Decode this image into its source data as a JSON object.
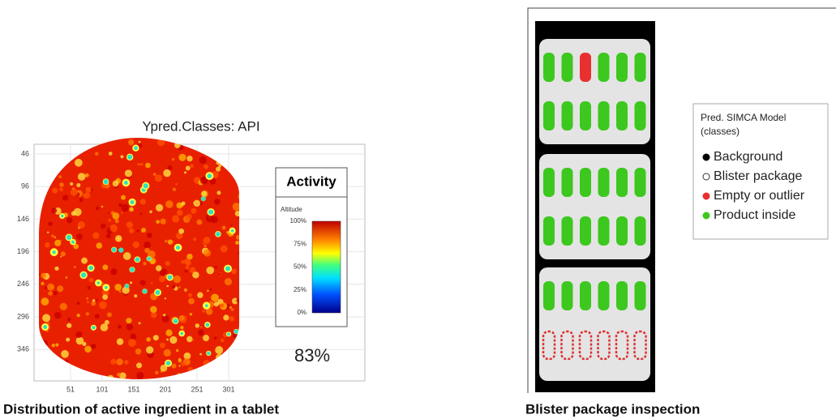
{
  "left_panel": {
    "title": "Ypred.Classes: API",
    "y_tick_labels": [
      46,
      96,
      146,
      196,
      246,
      296,
      346
    ],
    "x_tick_labels": [
      51,
      101,
      151,
      201,
      251,
      301
    ],
    "legend": {
      "title": "Activity",
      "subtitle": "Altitude",
      "scale_labels": [
        "100%",
        "75%",
        "50%",
        "25%",
        "0%"
      ],
      "result": "83%"
    },
    "caption": "Distribution of active ingredient in a tablet"
  },
  "right_panel": {
    "legend": {
      "title_lines": [
        "Pred. SIMCA Model",
        "(classes)"
      ],
      "items": [
        "Background",
        "Blister package",
        "Empty or outlier",
        "Product inside"
      ]
    },
    "caption": "Blister package inspection"
  }
}
